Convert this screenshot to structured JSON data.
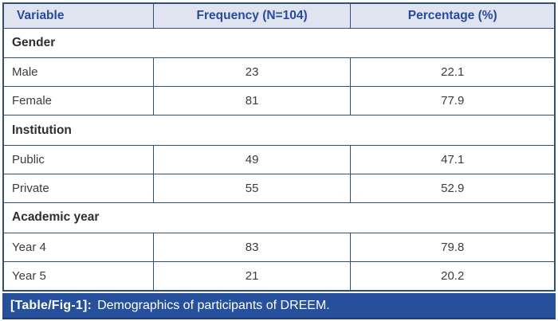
{
  "table": {
    "headers": [
      "Variable",
      "Frequency (N=104)",
      "Percentage (%)"
    ],
    "sections": [
      {
        "title": "Gender",
        "rows": [
          [
            "Male",
            "23",
            "22.1"
          ],
          [
            "Female",
            "81",
            "77.9"
          ]
        ]
      },
      {
        "title": "Institution",
        "rows": [
          [
            "Public",
            "49",
            "47.1"
          ],
          [
            "Private",
            "55",
            "52.9"
          ]
        ]
      },
      {
        "title": "Academic year",
        "rows": [
          [
            "Year 4",
            "83",
            "79.8"
          ],
          [
            "Year 5",
            "21",
            "20.2"
          ]
        ]
      }
    ]
  },
  "caption": {
    "label": "[Table/Fig-1]:",
    "text": "Demographics of participants of DREEM."
  },
  "colors": {
    "header_bg": "#e0e4f0",
    "header_text": "#274a9c",
    "border": "#2d5170",
    "caption_bg": "#26509c",
    "caption_text": "#ffffff",
    "body_text": "#3c3c3c"
  }
}
